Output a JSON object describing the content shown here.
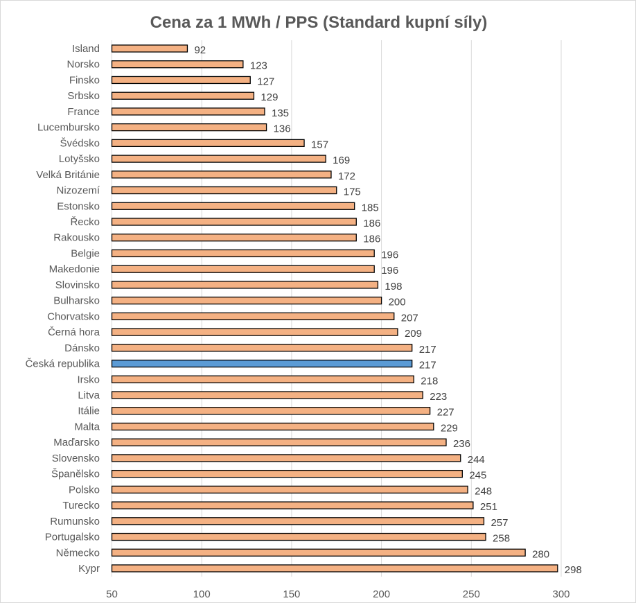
{
  "chart_data": {
    "type": "bar",
    "orientation": "horizontal",
    "title": "Cena za 1 MWh / PPS (Standard kupní síly)",
    "xlabel": "",
    "ylabel": "",
    "xlim": [
      50,
      300
    ],
    "x_ticks": [
      "50",
      "100",
      "150",
      "200",
      "250",
      "300"
    ],
    "grid": "vertical",
    "legend": "none",
    "colors": {
      "default": "#F4B183",
      "highlight": "#5B9BD5",
      "outline": "#000000",
      "grid": "#d9d9d9"
    },
    "highlight_category": "Česká republika",
    "categories": [
      "Island",
      "Norsko",
      "Finsko",
      "Srbsko",
      "France",
      "Lucembursko",
      "Švédsko",
      "Lotyšsko",
      "Velká Británie",
      "Nizozemí",
      "Estonsko",
      "Řecko",
      "Rakousko",
      "Belgie",
      "Makedonie",
      "Slovinsko",
      "Bulharsko",
      "Chorvatsko",
      "Černá hora",
      "Dánsko",
      "Česká republika",
      "Irsko",
      "Litva",
      "Itálie",
      "Malta",
      "Maďarsko",
      "Slovensko",
      "Španělsko",
      "Polsko",
      "Turecko",
      "Rumunsko",
      "Portugalsko",
      "Německo",
      "Kypr"
    ],
    "values": [
      92,
      123,
      127,
      129,
      135,
      136,
      157,
      169,
      172,
      175,
      185,
      186,
      186,
      196,
      196,
      198,
      200,
      207,
      209,
      217,
      217,
      218,
      223,
      227,
      229,
      236,
      244,
      245,
      248,
      251,
      257,
      258,
      280,
      298
    ]
  }
}
